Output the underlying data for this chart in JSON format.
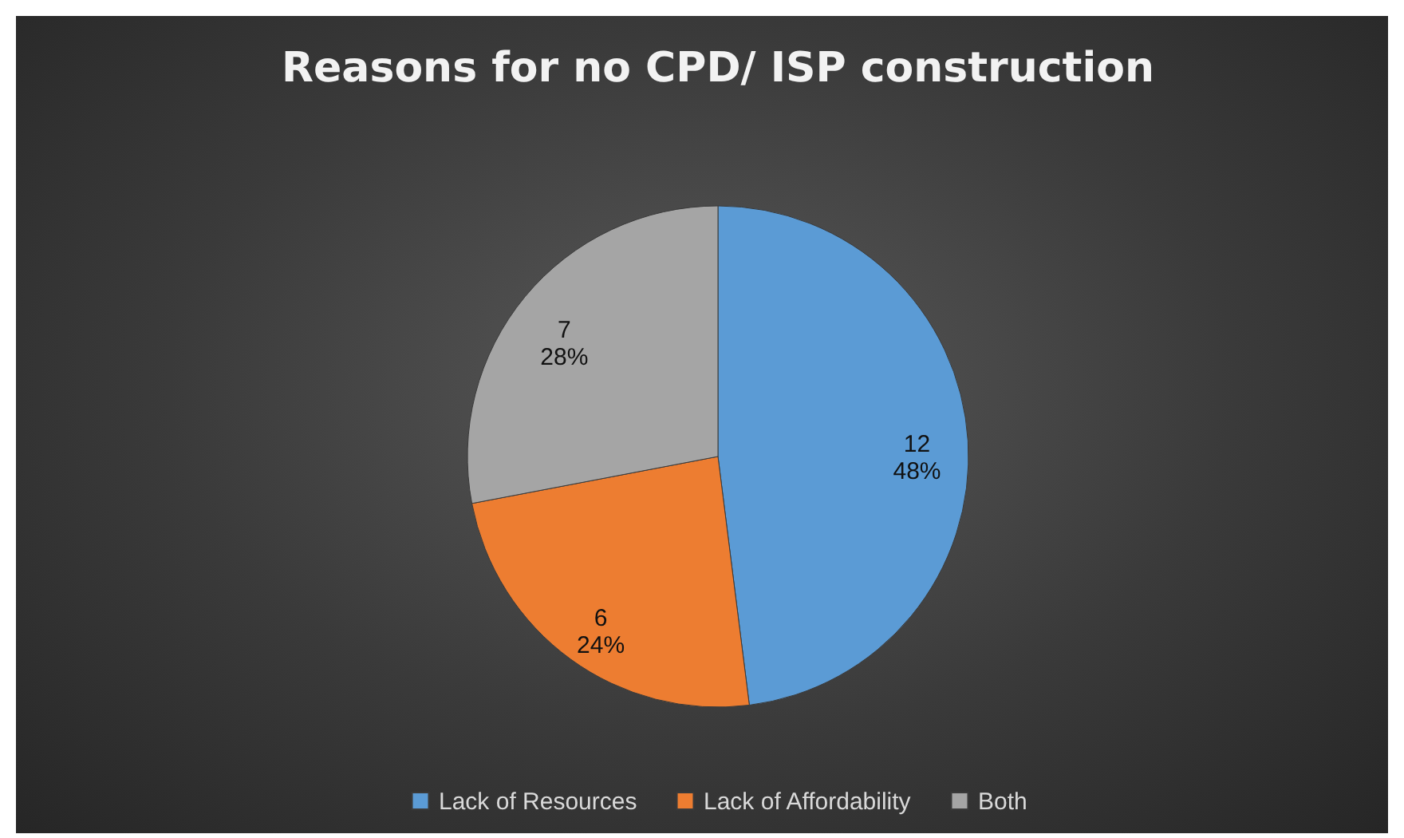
{
  "chart_data": {
    "type": "pie",
    "title": "Reasons for no CPD/ ISP construction",
    "categories": [
      "Lack of Resources",
      "Lack of Affordability",
      "Both"
    ],
    "values": [
      12,
      6,
      7
    ],
    "colors": [
      "#5b9bd5",
      "#ed7d31",
      "#a5a5a5"
    ],
    "value_labels": [
      "12\n48%",
      "6\n24%",
      "7\n28%"
    ],
    "legend": "bottom"
  }
}
